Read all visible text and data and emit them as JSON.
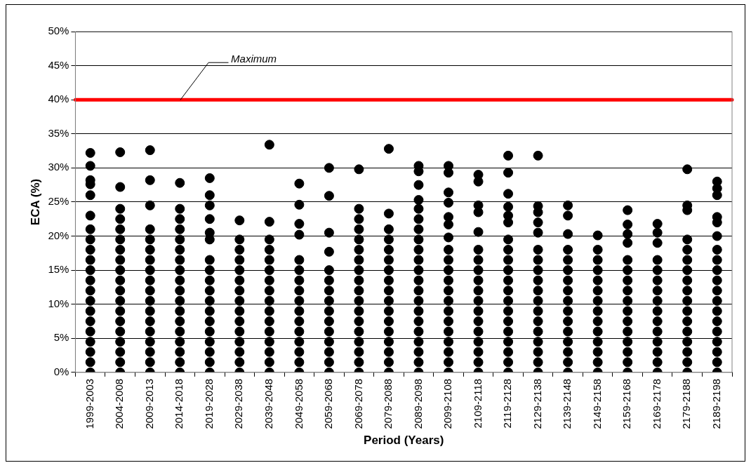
{
  "chart_data": {
    "type": "scatter",
    "xlabel": "Period (Years)",
    "ylabel": "ECA (%)",
    "categories": [
      "1999-2003",
      "2004-2008",
      "2009-2013",
      "2014-2018",
      "2019-2028",
      "2029-2038",
      "2039-2048",
      "2049-2058",
      "2059-2068",
      "2069-2078",
      "2079-2088",
      "2089-2098",
      "2099-2108",
      "2109-2118",
      "2119-2128",
      "2129-2138",
      "2139-2148",
      "2149-2158",
      "2159-2168",
      "2169-2178",
      "2179-2188",
      "2189-2198"
    ],
    "ylim": [
      0,
      50
    ],
    "yticks": [
      {
        "value": 0,
        "label": "0%"
      },
      {
        "value": 5,
        "label": "5%"
      },
      {
        "value": 10,
        "label": "10%"
      },
      {
        "value": 15,
        "label": "15%"
      },
      {
        "value": 20,
        "label": "20%"
      },
      {
        "value": 25,
        "label": "25%"
      },
      {
        "value": 30,
        "label": "30%"
      },
      {
        "value": 35,
        "label": "35%"
      },
      {
        "value": 40,
        "label": "40%"
      },
      {
        "value": 45,
        "label": "45%"
      },
      {
        "value": 50,
        "label": "50%"
      }
    ],
    "grid": "y",
    "marker": "circle",
    "ref_lines": [
      {
        "axis": "y",
        "value": 40,
        "label": "Maximum",
        "color": "#ff0000"
      }
    ],
    "series": [
      {
        "color": "#000000",
        "x": [
          "1999-2003",
          "1999-2003",
          "1999-2003",
          "1999-2003",
          "1999-2003",
          "1999-2003",
          "1999-2003",
          "1999-2003",
          "1999-2003",
          "1999-2003",
          "1999-2003",
          "1999-2003",
          "1999-2003",
          "1999-2003",
          "1999-2003",
          "1999-2003",
          "1999-2003",
          "1999-2003",
          "1999-2003",
          "1999-2003",
          "1999-2003"
        ],
        "values": [
          32.2,
          30.3,
          28.2,
          27.6,
          26,
          23,
          21,
          19.5,
          18,
          16.5,
          15,
          13.5,
          12,
          10.5,
          9,
          7.5,
          6,
          4.5,
          3,
          1.5,
          0
        ]
      },
      {
        "color": "#000000",
        "x": [
          "2004-2008",
          "2004-2008",
          "2004-2008",
          "2004-2008",
          "2004-2008",
          "2004-2008",
          "2004-2008",
          "2004-2008",
          "2004-2008",
          "2004-2008",
          "2004-2008",
          "2004-2008",
          "2004-2008",
          "2004-2008",
          "2004-2008",
          "2004-2008",
          "2004-2008",
          "2004-2008",
          "2004-2008",
          "2004-2008"
        ],
        "values": [
          32.3,
          null,
          27.2,
          24,
          22.5,
          21,
          19.5,
          18,
          16.5,
          15,
          13.5,
          12,
          10.5,
          9,
          7.5,
          6,
          4.5,
          3,
          1.5,
          0
        ]
      },
      {
        "color": "#000000",
        "x": [
          "2009-2013",
          "2009-2013",
          "2009-2013",
          "2009-2013",
          "2009-2013",
          "2009-2013",
          "2009-2013",
          "2009-2013",
          "2009-2013",
          "2009-2013",
          "2009-2013",
          "2009-2013",
          "2009-2013",
          "2009-2013",
          "2009-2013",
          "2009-2013",
          "2009-2013",
          "2009-2013"
        ],
        "values": [
          32.6,
          28.2,
          24.5,
          21,
          19.5,
          18,
          16.5,
          15,
          13.5,
          12,
          10.5,
          9,
          7.5,
          6,
          4.5,
          3,
          1.5,
          0
        ]
      },
      {
        "color": "#000000",
        "x": [
          "2014-2018",
          "2014-2018",
          "2014-2018",
          "2014-2018",
          "2014-2018",
          "2014-2018",
          "2014-2018",
          "2014-2018",
          "2014-2018",
          "2014-2018",
          "2014-2018",
          "2014-2018",
          "2014-2018",
          "2014-2018",
          "2014-2018",
          "2014-2018",
          "2014-2018",
          "2014-2018",
          "2014-2018"
        ],
        "values": [
          null,
          27.8,
          24,
          22.5,
          21,
          19.5,
          18,
          16.5,
          15,
          13.5,
          12,
          10.5,
          9,
          7.5,
          6,
          4.5,
          3,
          1.5,
          0
        ]
      },
      {
        "color": "#000000",
        "x": [
          "2019-2028",
          "2019-2028",
          "2019-2028",
          "2019-2028",
          "2019-2028",
          "2019-2028",
          "2019-2028",
          "2019-2028",
          "2019-2028",
          "2019-2028",
          "2019-2028",
          "2019-2028",
          "2019-2028",
          "2019-2028",
          "2019-2028",
          "2019-2028",
          "2019-2028",
          "2019-2028",
          "2019-2028"
        ],
        "values": [
          28.5,
          26,
          null,
          24.5,
          22.5,
          20.5,
          19.5,
          16.5,
          15,
          13.5,
          12,
          10.5,
          9,
          7.5,
          6,
          4.5,
          3,
          1.5,
          0
        ]
      },
      {
        "color": "#000000",
        "x": [
          "2029-2038",
          "2029-2038",
          "2029-2038",
          "2029-2038",
          "2029-2038",
          "2029-2038",
          "2029-2038",
          "2029-2038",
          "2029-2038",
          "2029-2038",
          "2029-2038",
          "2029-2038",
          "2029-2038",
          "2029-2038",
          "2029-2038"
        ],
        "values": [
          22.3,
          19.5,
          18,
          16.5,
          15,
          13.5,
          12,
          10.5,
          9,
          7.5,
          6,
          4.5,
          3,
          1.5,
          0
        ]
      },
      {
        "color": "#000000",
        "x": [
          "2039-2048",
          "2039-2048",
          "2039-2048",
          "2039-2048",
          "2039-2048",
          "2039-2048",
          "2039-2048",
          "2039-2048",
          "2039-2048",
          "2039-2048",
          "2039-2048",
          "2039-2048",
          "2039-2048",
          "2039-2048",
          "2039-2048",
          "2039-2048"
        ],
        "values": [
          33.4,
          22.1,
          19.5,
          18,
          16.5,
          15,
          13.5,
          12,
          10.5,
          9,
          7.5,
          6,
          4.5,
          3,
          1.5,
          0
        ]
      },
      {
        "color": "#000000",
        "x": [
          "2049-2058",
          "2049-2058",
          "2049-2058",
          "2049-2058",
          "2049-2058",
          "2049-2058",
          "2049-2058",
          "2049-2058",
          "2049-2058",
          "2049-2058",
          "2049-2058",
          "2049-2058",
          "2049-2058",
          "2049-2058",
          "2049-2058",
          "2049-2058"
        ],
        "values": [
          27.7,
          24.6,
          21.8,
          20.2,
          16.5,
          15,
          13.5,
          12,
          10.5,
          9,
          7.5,
          6,
          4.5,
          3,
          1.5,
          0
        ]
      },
      {
        "color": "#000000",
        "x": [
          "2059-2068",
          "2059-2068",
          "2059-2068",
          "2059-2068",
          "2059-2068",
          "2059-2068",
          "2059-2068",
          "2059-2068",
          "2059-2068",
          "2059-2068",
          "2059-2068",
          "2059-2068",
          "2059-2068",
          "2059-2068",
          "2059-2068"
        ],
        "values": [
          30,
          25.9,
          20.5,
          17.7,
          15,
          13.5,
          12,
          10.5,
          9,
          7.5,
          6,
          4.5,
          3,
          1.5,
          0
        ]
      },
      {
        "color": "#000000",
        "x": [
          "2069-2078",
          "2069-2078",
          "2069-2078",
          "2069-2078",
          "2069-2078",
          "2069-2078",
          "2069-2078",
          "2069-2078",
          "2069-2078",
          "2069-2078",
          "2069-2078",
          "2069-2078",
          "2069-2078",
          "2069-2078",
          "2069-2078",
          "2069-2078",
          "2069-2078",
          "2069-2078"
        ],
        "values": [
          29.8,
          24,
          22.5,
          21,
          19.5,
          18,
          16.5,
          15,
          13.5,
          12,
          10.5,
          9,
          7.5,
          6,
          4.5,
          3,
          1.5,
          0
        ]
      },
      {
        "color": "#000000",
        "x": [
          "2079-2088",
          "2079-2088",
          "2079-2088",
          "2079-2088",
          "2079-2088",
          "2079-2088",
          "2079-2088",
          "2079-2088",
          "2079-2088",
          "2079-2088",
          "2079-2088",
          "2079-2088",
          "2079-2088",
          "2079-2088",
          "2079-2088",
          "2079-2088",
          "2079-2088"
        ],
        "values": [
          32.8,
          23.3,
          21,
          19.5,
          18,
          16.5,
          15,
          13.5,
          12,
          10.5,
          9,
          7.5,
          6,
          4.5,
          3,
          1.5,
          0
        ]
      },
      {
        "color": "#000000",
        "x": [
          "2089-2098",
          "2089-2098",
          "2089-2098",
          "2089-2098",
          "2089-2098",
          "2089-2098",
          "2089-2098",
          "2089-2098",
          "2089-2098",
          "2089-2098",
          "2089-2098",
          "2089-2098",
          "2089-2098",
          "2089-2098",
          "2089-2098",
          "2089-2098",
          "2089-2098",
          "2089-2098",
          "2089-2098",
          "2089-2098",
          "2089-2098"
        ],
        "values": [
          30.3,
          29.5,
          27.5,
          25.3,
          24,
          22.5,
          21,
          19.5,
          18,
          16.5,
          15,
          13.5,
          12,
          10.5,
          9,
          7.5,
          6,
          4.5,
          3,
          1.5,
          0
        ]
      },
      {
        "color": "#000000",
        "x": [
          "2099-2108",
          "2099-2108",
          "2099-2108",
          "2099-2108",
          "2099-2108",
          "2099-2108",
          "2099-2108",
          "2099-2108",
          "2099-2108",
          "2099-2108",
          "2099-2108",
          "2099-2108",
          "2099-2108",
          "2099-2108",
          "2099-2108",
          "2099-2108",
          "2099-2108",
          "2099-2108",
          "2099-2108",
          "2099-2108"
        ],
        "values": [
          30.3,
          29.3,
          26.4,
          24.9,
          22.8,
          21.7,
          19.8,
          18,
          16.5,
          15,
          13.5,
          12,
          10.5,
          9,
          7.5,
          6,
          4.5,
          3,
          1.5,
          0
        ]
      },
      {
        "color": "#000000",
        "x": [
          "2109-2118",
          "2109-2118",
          "2109-2118",
          "2109-2118",
          "2109-2118",
          "2109-2118",
          "2109-2118",
          "2109-2118",
          "2109-2118",
          "2109-2118",
          "2109-2118",
          "2109-2118",
          "2109-2118",
          "2109-2118",
          "2109-2118",
          "2109-2118",
          "2109-2118",
          "2109-2118"
        ],
        "values": [
          29,
          28,
          24.5,
          23.5,
          20.6,
          18,
          16.5,
          15,
          13.5,
          12,
          10.5,
          9,
          7.5,
          6,
          4.5,
          3,
          1.5,
          0
        ]
      },
      {
        "color": "#000000",
        "x": [
          "2119-2128",
          "2119-2128",
          "2119-2128",
          "2119-2128",
          "2119-2128",
          "2119-2128",
          "2119-2128",
          "2119-2128",
          "2119-2128",
          "2119-2128",
          "2119-2128",
          "2119-2128",
          "2119-2128",
          "2119-2128",
          "2119-2128",
          "2119-2128",
          "2119-2128",
          "2119-2128",
          "2119-2128",
          "2119-2128"
        ],
        "values": [
          31.8,
          29.3,
          26.2,
          24.3,
          23,
          22,
          19.5,
          18,
          16.5,
          15,
          13.5,
          12,
          10.5,
          9,
          7.5,
          6,
          4.5,
          3,
          1.5,
          0
        ]
      },
      {
        "color": "#000000",
        "x": [
          "2129-2138",
          "2129-2138",
          "2129-2138",
          "2129-2138",
          "2129-2138",
          "2129-2138",
          "2129-2138",
          "2129-2138",
          "2129-2138",
          "2129-2138",
          "2129-2138",
          "2129-2138",
          "2129-2138",
          "2129-2138",
          "2129-2138",
          "2129-2138",
          "2129-2138",
          "2129-2138"
        ],
        "values": [
          31.8,
          24.4,
          23.5,
          22,
          20.5,
          18,
          16.5,
          15,
          13.5,
          12,
          10.5,
          9,
          7.5,
          6,
          4.5,
          3,
          1.5,
          0
        ]
      },
      {
        "color": "#000000",
        "x": [
          "2139-2148",
          "2139-2148",
          "2139-2148",
          "2139-2148",
          "2139-2148",
          "2139-2148",
          "2139-2148",
          "2139-2148",
          "2139-2148",
          "2139-2148",
          "2139-2148",
          "2139-2148",
          "2139-2148",
          "2139-2148",
          "2139-2148",
          "2139-2148"
        ],
        "values": [
          24.5,
          23,
          20.3,
          18,
          16.5,
          15,
          13.5,
          12,
          10.5,
          9,
          7.5,
          6,
          4.5,
          3,
          1.5,
          0
        ]
      },
      {
        "color": "#000000",
        "x": [
          "2149-2158",
          "2149-2158",
          "2149-2158",
          "2149-2158",
          "2149-2158",
          "2149-2158",
          "2149-2158",
          "2149-2158",
          "2149-2158",
          "2149-2158",
          "2149-2158",
          "2149-2158",
          "2149-2158",
          "2149-2158"
        ],
        "values": [
          20.1,
          18,
          16.5,
          15,
          13.5,
          12,
          10.5,
          9,
          7.5,
          6,
          4.5,
          3,
          1.5,
          0
        ]
      },
      {
        "color": "#000000",
        "x": [
          "2159-2168",
          "2159-2168",
          "2159-2168",
          "2159-2168",
          "2159-2168",
          "2159-2168",
          "2159-2168",
          "2159-2168",
          "2159-2168",
          "2159-2168",
          "2159-2168",
          "2159-2168",
          "2159-2168",
          "2159-2168",
          "2159-2168",
          "2159-2168"
        ],
        "values": [
          23.8,
          21.7,
          20.3,
          19,
          16.5,
          15,
          13.5,
          12,
          10.5,
          9,
          7.5,
          6,
          4.5,
          3,
          1.5,
          0
        ]
      },
      {
        "color": "#000000",
        "x": [
          "2169-2178",
          "2169-2178",
          "2169-2178",
          "2169-2178",
          "2169-2178",
          "2169-2178",
          "2169-2178",
          "2169-2178",
          "2169-2178",
          "2169-2178",
          "2169-2178",
          "2169-2178",
          "2169-2178",
          "2169-2178",
          "2169-2178"
        ],
        "values": [
          21.8,
          20.5,
          19,
          16.5,
          15,
          13.5,
          12,
          10.5,
          9,
          7.5,
          6,
          4.5,
          3,
          1.5,
          0
        ]
      },
      {
        "color": "#000000",
        "x": [
          "2179-2188",
          "2179-2188",
          "2179-2188",
          "2179-2188",
          "2179-2188",
          "2179-2188",
          "2179-2188",
          "2179-2188",
          "2179-2188",
          "2179-2188",
          "2179-2188",
          "2179-2188",
          "2179-2188",
          "2179-2188",
          "2179-2188",
          "2179-2188",
          "2179-2188"
        ],
        "values": [
          29.8,
          24.5,
          23.8,
          19.5,
          18,
          16.5,
          15,
          13.5,
          12,
          10.5,
          9,
          7.5,
          6,
          4.5,
          3,
          1.5,
          0
        ]
      },
      {
        "color": "#000000",
        "x": [
          "2189-2198",
          "2189-2198",
          "2189-2198",
          "2189-2198",
          "2189-2198",
          "2189-2198",
          "2189-2198",
          "2189-2198",
          "2189-2198",
          "2189-2198",
          "2189-2198",
          "2189-2198",
          "2189-2198",
          "2189-2198",
          "2189-2198",
          "2189-2198",
          "2189-2198",
          "2189-2198",
          "2189-2198"
        ],
        "values": [
          28,
          27,
          26,
          22.8,
          22,
          20,
          18,
          16.5,
          15,
          13.5,
          12,
          10.5,
          9,
          7.5,
          6,
          4.5,
          3,
          1.5,
          0
        ]
      }
    ]
  }
}
